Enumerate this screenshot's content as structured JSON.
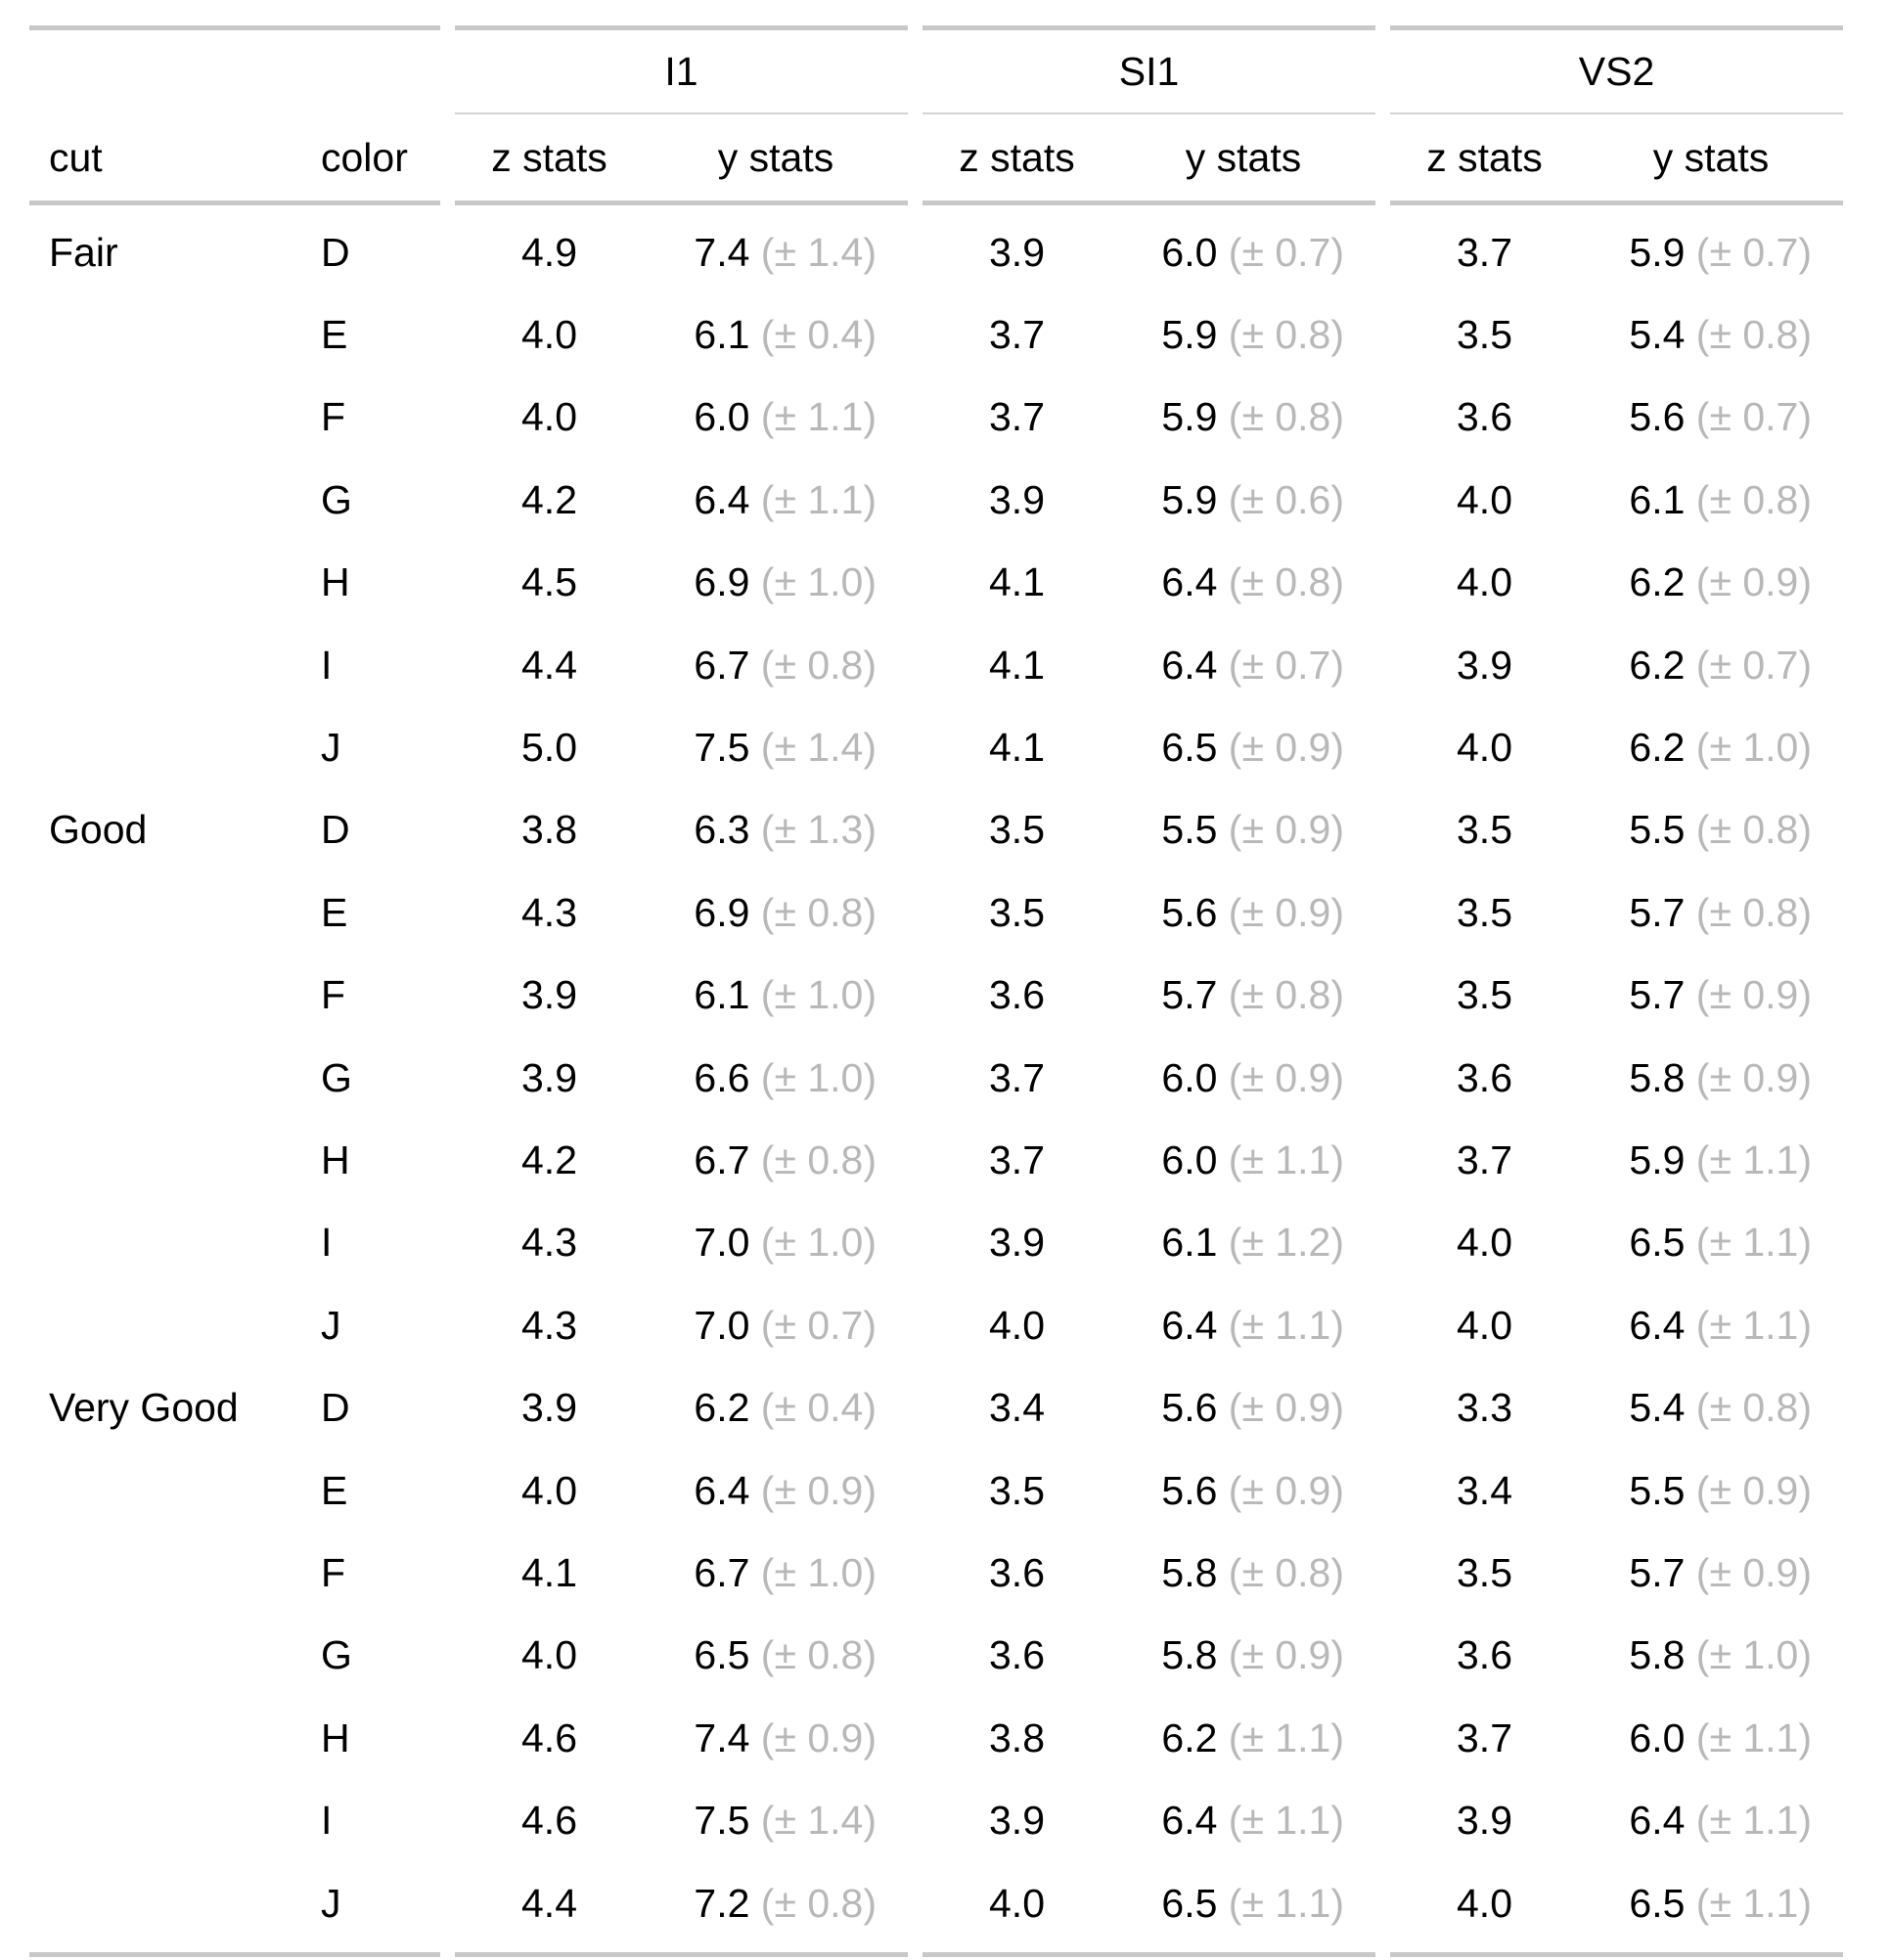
{
  "table": {
    "stub_headers": {
      "cut": "cut",
      "color": "color"
    },
    "spanners": [
      {
        "label": "I1"
      },
      {
        "label": "SI1"
      },
      {
        "label": "VS2"
      }
    ],
    "subheaders": {
      "z": "z stats",
      "y": "y stats"
    },
    "rows": [
      {
        "cut": "Fair",
        "color": "D",
        "g0_z": "4.9",
        "g0_y": "7.4",
        "g0_sd": "(± 1.4)",
        "g1_z": "3.9",
        "g1_y": "6.0",
        "g1_sd": "(± 0.7)",
        "g2_z": "3.7",
        "g2_y": "5.9",
        "g2_sd": "(± 0.7)"
      },
      {
        "cut": "",
        "color": "E",
        "g0_z": "4.0",
        "g0_y": "6.1",
        "g0_sd": "(± 0.4)",
        "g1_z": "3.7",
        "g1_y": "5.9",
        "g1_sd": "(± 0.8)",
        "g2_z": "3.5",
        "g2_y": "5.4",
        "g2_sd": "(± 0.8)"
      },
      {
        "cut": "",
        "color": "F",
        "g0_z": "4.0",
        "g0_y": "6.0",
        "g0_sd": "(± 1.1)",
        "g1_z": "3.7",
        "g1_y": "5.9",
        "g1_sd": "(± 0.8)",
        "g2_z": "3.6",
        "g2_y": "5.6",
        "g2_sd": "(± 0.7)"
      },
      {
        "cut": "",
        "color": "G",
        "g0_z": "4.2",
        "g0_y": "6.4",
        "g0_sd": "(± 1.1)",
        "g1_z": "3.9",
        "g1_y": "5.9",
        "g1_sd": "(± 0.6)",
        "g2_z": "4.0",
        "g2_y": "6.1",
        "g2_sd": "(± 0.8)"
      },
      {
        "cut": "",
        "color": "H",
        "g0_z": "4.5",
        "g0_y": "6.9",
        "g0_sd": "(± 1.0)",
        "g1_z": "4.1",
        "g1_y": "6.4",
        "g1_sd": "(± 0.8)",
        "g2_z": "4.0",
        "g2_y": "6.2",
        "g2_sd": "(± 0.9)"
      },
      {
        "cut": "",
        "color": "I",
        "g0_z": "4.4",
        "g0_y": "6.7",
        "g0_sd": "(± 0.8)",
        "g1_z": "4.1",
        "g1_y": "6.4",
        "g1_sd": "(± 0.7)",
        "g2_z": "3.9",
        "g2_y": "6.2",
        "g2_sd": "(± 0.7)"
      },
      {
        "cut": "",
        "color": "J",
        "g0_z": "5.0",
        "g0_y": "7.5",
        "g0_sd": "(± 1.4)",
        "g1_z": "4.1",
        "g1_y": "6.5",
        "g1_sd": "(± 0.9)",
        "g2_z": "4.0",
        "g2_y": "6.2",
        "g2_sd": "(± 1.0)"
      },
      {
        "cut": "Good",
        "color": "D",
        "g0_z": "3.8",
        "g0_y": "6.3",
        "g0_sd": "(± 1.3)",
        "g1_z": "3.5",
        "g1_y": "5.5",
        "g1_sd": "(± 0.9)",
        "g2_z": "3.5",
        "g2_y": "5.5",
        "g2_sd": "(± 0.8)"
      },
      {
        "cut": "",
        "color": "E",
        "g0_z": "4.3",
        "g0_y": "6.9",
        "g0_sd": "(± 0.8)",
        "g1_z": "3.5",
        "g1_y": "5.6",
        "g1_sd": "(± 0.9)",
        "g2_z": "3.5",
        "g2_y": "5.7",
        "g2_sd": "(± 0.8)"
      },
      {
        "cut": "",
        "color": "F",
        "g0_z": "3.9",
        "g0_y": "6.1",
        "g0_sd": "(± 1.0)",
        "g1_z": "3.6",
        "g1_y": "5.7",
        "g1_sd": "(± 0.8)",
        "g2_z": "3.5",
        "g2_y": "5.7",
        "g2_sd": "(± 0.9)"
      },
      {
        "cut": "",
        "color": "G",
        "g0_z": "3.9",
        "g0_y": "6.6",
        "g0_sd": "(± 1.0)",
        "g1_z": "3.7",
        "g1_y": "6.0",
        "g1_sd": "(± 0.9)",
        "g2_z": "3.6",
        "g2_y": "5.8",
        "g2_sd": "(± 0.9)"
      },
      {
        "cut": "",
        "color": "H",
        "g0_z": "4.2",
        "g0_y": "6.7",
        "g0_sd": "(± 0.8)",
        "g1_z": "3.7",
        "g1_y": "6.0",
        "g1_sd": "(± 1.1)",
        "g2_z": "3.7",
        "g2_y": "5.9",
        "g2_sd": "(± 1.1)"
      },
      {
        "cut": "",
        "color": "I",
        "g0_z": "4.3",
        "g0_y": "7.0",
        "g0_sd": "(± 1.0)",
        "g1_z": "3.9",
        "g1_y": "6.1",
        "g1_sd": "(± 1.2)",
        "g2_z": "4.0",
        "g2_y": "6.5",
        "g2_sd": "(± 1.1)"
      },
      {
        "cut": "",
        "color": "J",
        "g0_z": "4.3",
        "g0_y": "7.0",
        "g0_sd": "(± 0.7)",
        "g1_z": "4.0",
        "g1_y": "6.4",
        "g1_sd": "(± 1.1)",
        "g2_z": "4.0",
        "g2_y": "6.4",
        "g2_sd": "(± 1.1)"
      },
      {
        "cut": "Very Good",
        "color": "D",
        "g0_z": "3.9",
        "g0_y": "6.2",
        "g0_sd": "(± 0.4)",
        "g1_z": "3.4",
        "g1_y": "5.6",
        "g1_sd": "(± 0.9)",
        "g2_z": "3.3",
        "g2_y": "5.4",
        "g2_sd": "(± 0.8)"
      },
      {
        "cut": "",
        "color": "E",
        "g0_z": "4.0",
        "g0_y": "6.4",
        "g0_sd": "(± 0.9)",
        "g1_z": "3.5",
        "g1_y": "5.6",
        "g1_sd": "(± 0.9)",
        "g2_z": "3.4",
        "g2_y": "5.5",
        "g2_sd": "(± 0.9)"
      },
      {
        "cut": "",
        "color": "F",
        "g0_z": "4.1",
        "g0_y": "6.7",
        "g0_sd": "(± 1.0)",
        "g1_z": "3.6",
        "g1_y": "5.8",
        "g1_sd": "(± 0.8)",
        "g2_z": "3.5",
        "g2_y": "5.7",
        "g2_sd": "(± 0.9)"
      },
      {
        "cut": "",
        "color": "G",
        "g0_z": "4.0",
        "g0_y": "6.5",
        "g0_sd": "(± 0.8)",
        "g1_z": "3.6",
        "g1_y": "5.8",
        "g1_sd": "(± 0.9)",
        "g2_z": "3.6",
        "g2_y": "5.8",
        "g2_sd": "(± 1.0)"
      },
      {
        "cut": "",
        "color": "H",
        "g0_z": "4.6",
        "g0_y": "7.4",
        "g0_sd": "(± 0.9)",
        "g1_z": "3.8",
        "g1_y": "6.2",
        "g1_sd": "(± 1.1)",
        "g2_z": "3.7",
        "g2_y": "6.0",
        "g2_sd": "(± 1.1)"
      },
      {
        "cut": "",
        "color": "I",
        "g0_z": "4.6",
        "g0_y": "7.5",
        "g0_sd": "(± 1.4)",
        "g1_z": "3.9",
        "g1_y": "6.4",
        "g1_sd": "(± 1.1)",
        "g2_z": "3.9",
        "g2_y": "6.4",
        "g2_sd": "(± 1.1)"
      },
      {
        "cut": "",
        "color": "J",
        "g0_z": "4.4",
        "g0_y": "7.2",
        "g0_sd": "(± 0.8)",
        "g1_z": "4.0",
        "g1_y": "6.5",
        "g1_sd": "(± 1.1)",
        "g2_z": "4.0",
        "g2_y": "6.5",
        "g2_sd": "(± 1.1)"
      }
    ]
  }
}
